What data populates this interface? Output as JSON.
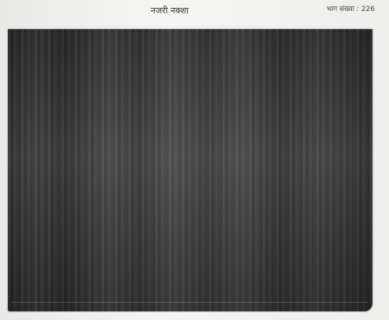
{
  "header": {
    "title": "नजरी नक्शा",
    "part": "भाग संख्या : 226"
  }
}
